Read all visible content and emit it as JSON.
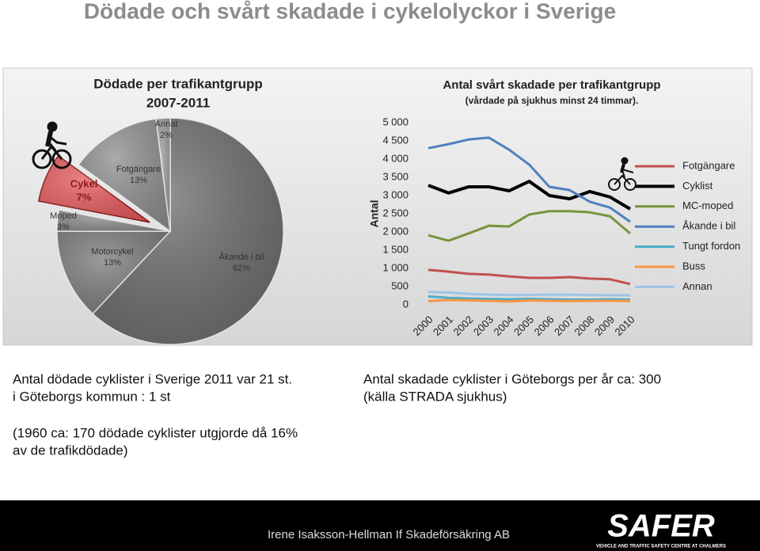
{
  "title": "Dödade och svårt skadade i cykelolyckor i Sverige",
  "chart_data": [
    {
      "type": "pie",
      "title": "Dödade per trafikantgrupp",
      "subtitle": "2007-2011",
      "categories": [
        "Åkande i bil",
        "Motorcykel",
        "Moped",
        "Cykel",
        "Fotgängare",
        "Annat"
      ],
      "values": [
        62,
        13,
        3,
        7,
        13,
        2
      ],
      "value_labels": [
        "62%",
        "13%",
        "3%",
        "7%",
        "13%",
        "2%"
      ],
      "colors": [
        "#6b6b6b",
        "#7a7a7a",
        "#8a8a8a",
        "#e5595c",
        "#8e8e8e",
        "#9a9a9a"
      ]
    },
    {
      "type": "line",
      "title": "Antal svårt skadade per trafikantgrupp",
      "subtitle": "(vårdade på sjukhus minst 24 timmar).",
      "y_label": "Antal",
      "categories": [
        "2000",
        "2001",
        "2002",
        "2003",
        "2004",
        "2005",
        "2006",
        "2007",
        "2008",
        "2009",
        "2010"
      ],
      "ylim": [
        0,
        5000
      ],
      "yticks": [
        0,
        500,
        {
          "value": 1000,
          "label": "1 000"
        },
        {
          "value": 1500,
          "label": "1 500"
        },
        {
          "value": 2000,
          "label": "2 000"
        },
        {
          "value": 2500,
          "label": "2 500"
        },
        {
          "value": 3000,
          "label": "3 000"
        },
        {
          "value": 3500,
          "label": "3 500"
        },
        {
          "value": 4000,
          "label": "4 000"
        },
        {
          "value": 4500,
          "label": "4 500"
        },
        {
          "value": 5000,
          "label": "5 000"
        }
      ],
      "legend": "right",
      "series": [
        {
          "name": "Fotgängare",
          "color": "#c0504d",
          "values": [
            960,
            910,
            850,
            830,
            780,
            740,
            740,
            760,
            720,
            700,
            570
          ]
        },
        {
          "name": "Cyklist",
          "color": "#000000",
          "values": [
            3280,
            3070,
            3240,
            3240,
            3130,
            3390,
            3000,
            2910,
            3110,
            2960,
            2630
          ]
        },
        {
          "name": "MC-moped",
          "color": "#77933c",
          "values": [
            1910,
            1760,
            1960,
            2170,
            2150,
            2480,
            2570,
            2570,
            2540,
            2430,
            1960
          ]
        },
        {
          "name": "Åkande i bil",
          "color": "#4f81bd",
          "values": [
            4300,
            4410,
            4540,
            4590,
            4260,
            3850,
            3240,
            3150,
            2830,
            2670,
            2280
          ]
        },
        {
          "name": "Tungt fordon",
          "color": "#4bacc6",
          "values": [
            230,
            190,
            170,
            160,
            150,
            160,
            150,
            140,
            140,
            150,
            140
          ]
        },
        {
          "name": "Buss",
          "color": "#f79646",
          "values": [
            100,
            130,
            120,
            110,
            90,
            120,
            110,
            100,
            110,
            110,
            100
          ]
        },
        {
          "name": "Annan",
          "color": "#9dc3e6",
          "values": [
            350,
            340,
            300,
            280,
            270,
            270,
            280,
            280,
            270,
            260,
            260
          ]
        }
      ]
    }
  ],
  "notes": {
    "left": [
      "Antal dödade cyklister i Sverige 2011 var 21 st.",
      "i Göteborgs kommun : 1 st"
    ],
    "right": [
      "Antal skadade cyklister i Göteborgs per år ca: 300",
      "(källa STRADA sjukhus)"
    ],
    "history": [
      "(1960 ca: 170 dödade cyklister utgjorde då 16%",
      "av de trafikdödade)"
    ]
  },
  "footer": {
    "author": "Irene Isaksson-Hellman If Skadeförsäkring AB",
    "logo": "SAFER",
    "logo_sub": "VEHICLE AND TRAFFIC SAFETY CENTRE AT CHALMERS"
  }
}
